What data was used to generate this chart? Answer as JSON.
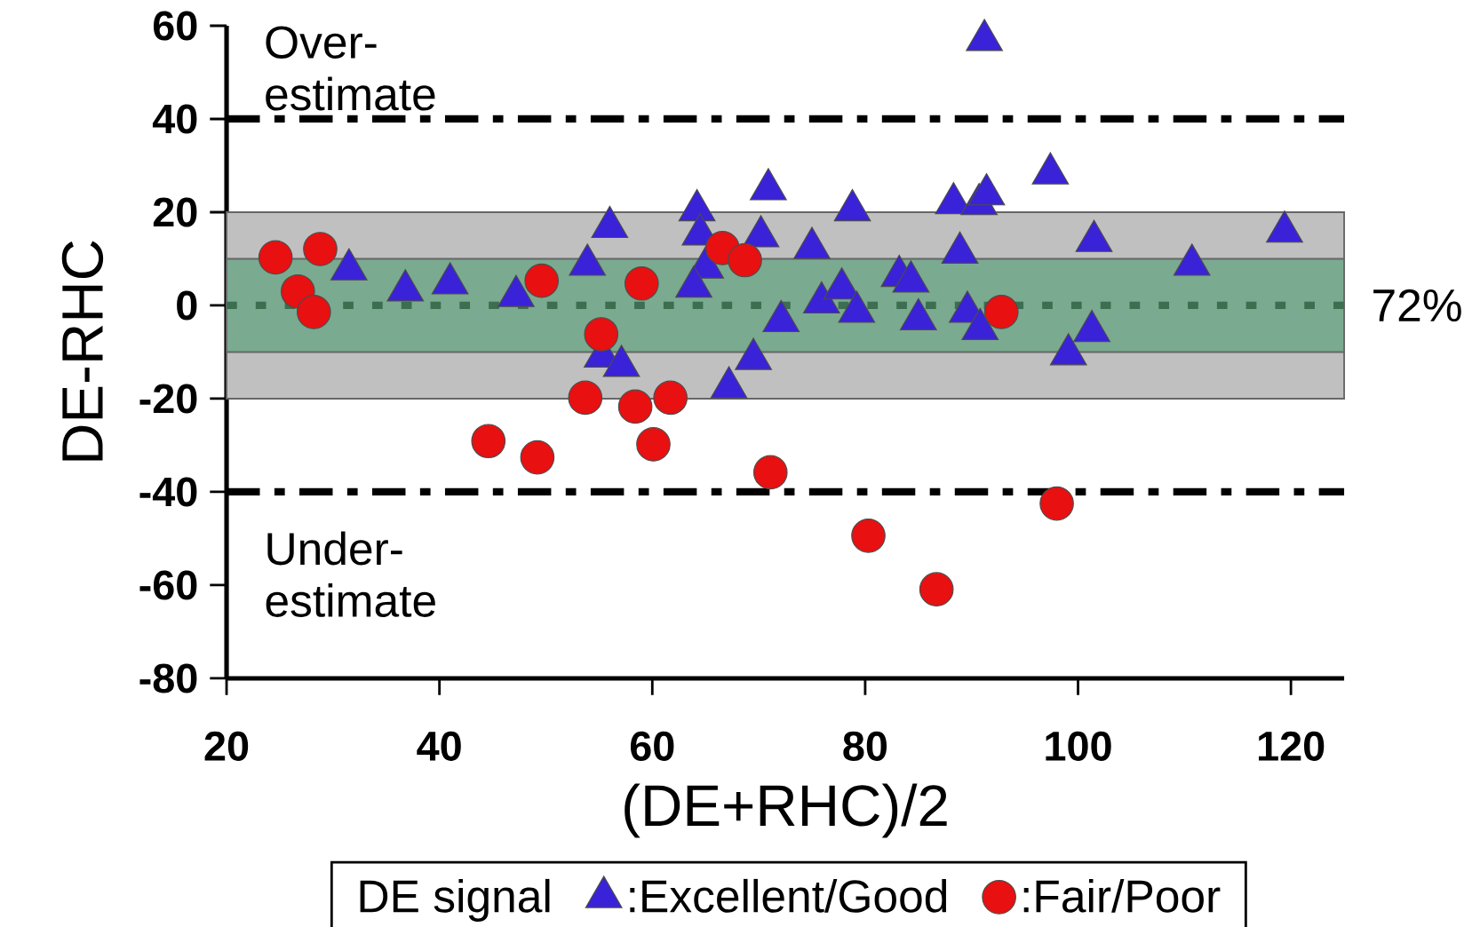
{
  "chart_data": {
    "type": "scatter",
    "xlabel": "(DE+RHC)/2",
    "ylabel": "DE-RHC",
    "legend_title": "DE signal",
    "xlim": [
      20,
      125
    ],
    "ylim": [
      -80,
      60
    ],
    "xticks": [
      20,
      40,
      60,
      80,
      100,
      120
    ],
    "yticks": [
      -80,
      -60,
      -40,
      -20,
      0,
      20,
      40,
      60
    ],
    "grid": false,
    "legend": "bottom",
    "bands": [
      {
        "axis": "y",
        "from": -20,
        "to": 20,
        "color": "#c0c0c0"
      },
      {
        "axis": "y",
        "from": -10,
        "to": 10,
        "color": "#7aaa90"
      }
    ],
    "ref_lines": [
      {
        "axis": "y",
        "value": 40,
        "color": "#000000",
        "line_style": "dashdot"
      },
      {
        "axis": "y",
        "value": -40,
        "color": "#000000",
        "line_style": "dashdot"
      },
      {
        "axis": "y",
        "value": 0,
        "color": "#3c6e50",
        "line_style": "dotted"
      }
    ],
    "annotations": [
      "Over-estimate",
      "Under-estimate",
      "72%"
    ],
    "series": [
      {
        "name": ":Excellent/Good",
        "color": "#3a22d8",
        "marker": "triangle",
        "x": [
          31.5,
          36.8,
          41.0,
          47.2,
          53.9,
          56.0,
          64.2,
          64.5,
          65.0,
          63.9,
          55.3,
          57.1,
          67.2,
          69.5,
          70.2,
          70.9,
          72.1,
          75.0,
          75.9,
          77.8,
          78.8,
          79.2,
          83.2,
          84.3,
          85.0,
          88.3,
          88.9,
          89.6,
          90.8,
          90.7,
          91.4,
          91.2,
          97.4,
          99.1,
          101.3,
          101.5,
          110.7,
          119.4
        ],
        "values": [
          7.7,
          3.2,
          4.7,
          2.0,
          8.7,
          16.8,
          20.4,
          15.2,
          8.1,
          4.0,
          -11.0,
          -13.0,
          -17.6,
          -11.5,
          14.8,
          24.9,
          -3.4,
          12.3,
          0.6,
          3.6,
          20.4,
          -1.4,
          6.3,
          5.1,
          -3.0,
          21.9,
          11.3,
          -1.4,
          -5.1,
          21.7,
          23.8,
          56.9,
          28.3,
          -10.5,
          -5.5,
          13.8,
          8.7,
          15.8
        ]
      },
      {
        "name": ":Fair/Poor",
        "color": "#e81010",
        "marker": "circle",
        "x": [
          24.6,
          26.7,
          28.8,
          28.2,
          49.6,
          55.2,
          59.0,
          66.6,
          68.7,
          92.8,
          53.7,
          58.4,
          61.7,
          44.6,
          49.2,
          60.1,
          71.1,
          80.3,
          86.7,
          98.0
        ],
        "values": [
          10.3,
          3.0,
          12.1,
          -1.4,
          5.3,
          -6.2,
          4.7,
          12.3,
          9.7,
          -1.4,
          -19.8,
          -21.7,
          -19.8,
          -29.1,
          -32.6,
          -29.8,
          -35.8,
          -49.4,
          -60.9,
          -42.5
        ]
      }
    ]
  }
}
